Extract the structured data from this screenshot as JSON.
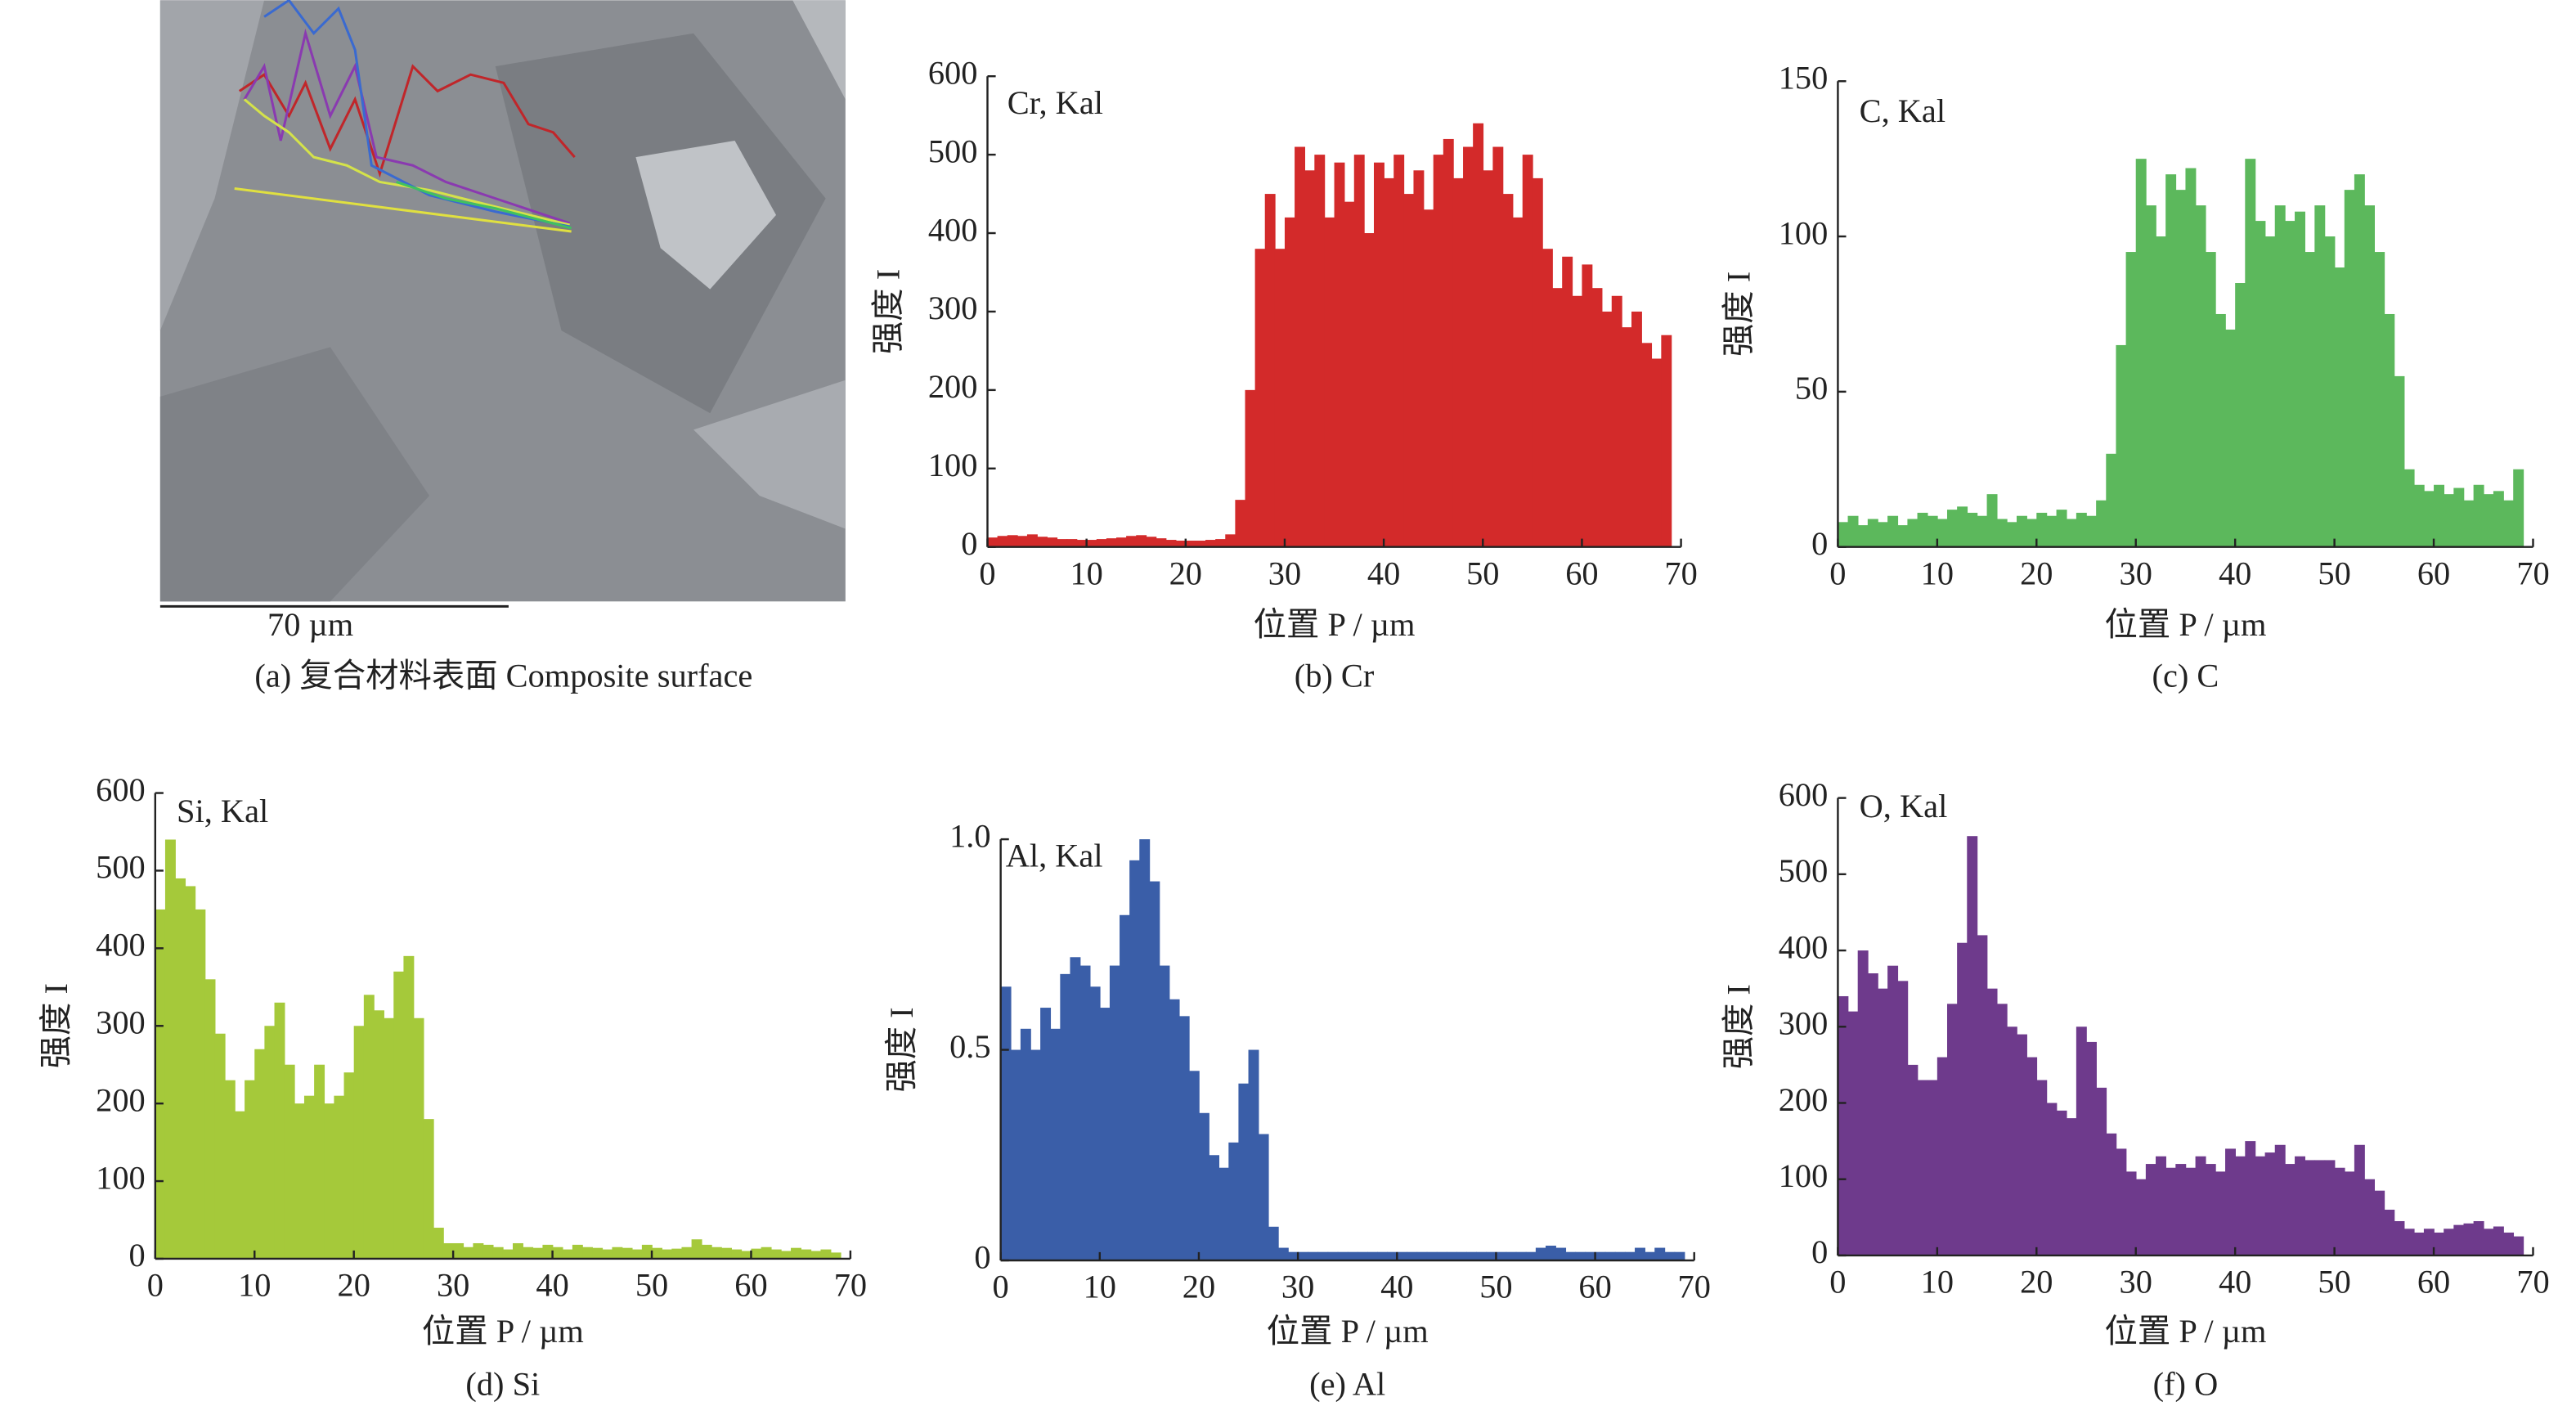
{
  "figure_a": {
    "scale_bar": "70 µm",
    "caption": "(a) 复合材料表面 Composite surface"
  },
  "chart_data": [
    {
      "type": "area",
      "title": "Cr, Kal",
      "caption": "(b) Cr",
      "x_label": "位置 P / µm",
      "y_label": "强度 I",
      "color": "#d32a2a",
      "xlim": [
        0,
        70
      ],
      "xticks": [
        0,
        10,
        20,
        30,
        40,
        50,
        60,
        70
      ],
      "ylim": [
        0,
        600
      ],
      "yticks": [
        0,
        100,
        200,
        300,
        400,
        500,
        600
      ],
      "x": [
        0,
        1,
        2,
        3,
        4,
        5,
        6,
        7,
        8,
        9,
        10,
        11,
        12,
        13,
        14,
        15,
        16,
        17,
        18,
        19,
        20,
        21,
        22,
        23,
        24,
        25,
        26,
        27,
        28,
        29,
        30,
        31,
        32,
        33,
        34,
        35,
        36,
        37,
        38,
        39,
        40,
        41,
        42,
        43,
        44,
        45,
        46,
        47,
        48,
        49,
        50,
        51,
        52,
        53,
        54,
        55,
        56,
        57,
        58,
        59,
        60,
        61,
        62,
        63,
        64,
        65,
        66,
        67,
        68
      ],
      "values": [
        12,
        14,
        15,
        14,
        16,
        13,
        12,
        10,
        10,
        9,
        9,
        10,
        11,
        12,
        14,
        15,
        13,
        11,
        9,
        8,
        8,
        8,
        9,
        10,
        16,
        60,
        200,
        380,
        450,
        380,
        420,
        510,
        480,
        500,
        420,
        490,
        440,
        500,
        400,
        490,
        470,
        500,
        450,
        480,
        430,
        500,
        520,
        470,
        510,
        540,
        480,
        510,
        450,
        420,
        500,
        470,
        380,
        330,
        370,
        320,
        360,
        330,
        300,
        320,
        280,
        300,
        260,
        240,
        270
      ]
    },
    {
      "type": "area",
      "title": "C, Kal",
      "caption": "(c) C",
      "x_label": "位置 P / µm",
      "y_label": "强度 I",
      "color": "#5cb85c",
      "xlim": [
        0,
        70
      ],
      "xticks": [
        0,
        10,
        20,
        30,
        40,
        50,
        60,
        70
      ],
      "ylim": [
        0,
        150
      ],
      "yticks": [
        0,
        50,
        100,
        150
      ],
      "x": [
        0,
        1,
        2,
        3,
        4,
        5,
        6,
        7,
        8,
        9,
        10,
        11,
        12,
        13,
        14,
        15,
        16,
        17,
        18,
        19,
        20,
        21,
        22,
        23,
        24,
        25,
        26,
        27,
        28,
        29,
        30,
        31,
        32,
        33,
        34,
        35,
        36,
        37,
        38,
        39,
        40,
        41,
        42,
        43,
        44,
        45,
        46,
        47,
        48,
        49,
        50,
        51,
        52,
        53,
        54,
        55,
        56,
        57,
        58,
        59,
        60,
        61,
        62,
        63,
        64,
        65,
        66,
        67,
        68
      ],
      "values": [
        8,
        10,
        7,
        9,
        8,
        10,
        7,
        9,
        11,
        10,
        9,
        12,
        13,
        11,
        10,
        17,
        9,
        8,
        10,
        9,
        11,
        10,
        12,
        9,
        11,
        10,
        15,
        30,
        65,
        95,
        125,
        110,
        100,
        120,
        115,
        122,
        110,
        95,
        75,
        70,
        85,
        125,
        105,
        100,
        110,
        105,
        108,
        95,
        110,
        100,
        90,
        115,
        120,
        110,
        95,
        75,
        55,
        25,
        20,
        18,
        20,
        17,
        19,
        15,
        20,
        17,
        18,
        15,
        25
      ]
    },
    {
      "type": "area",
      "title": "Si, Kal",
      "caption": "(d) Si",
      "x_label": "位置 P / µm",
      "y_label": "强度 I",
      "color": "#a5c93a",
      "xlim": [
        0,
        70
      ],
      "xticks": [
        0,
        10,
        20,
        30,
        40,
        50,
        60,
        70
      ],
      "ylim": [
        0,
        600
      ],
      "yticks": [
        0,
        100,
        200,
        300,
        400,
        500,
        600
      ],
      "x": [
        0,
        1,
        2,
        3,
        4,
        5,
        6,
        7,
        8,
        9,
        10,
        11,
        12,
        13,
        14,
        15,
        16,
        17,
        18,
        19,
        20,
        21,
        22,
        23,
        24,
        25,
        26,
        27,
        28,
        29,
        30,
        31,
        32,
        33,
        34,
        35,
        36,
        37,
        38,
        39,
        40,
        41,
        42,
        43,
        44,
        45,
        46,
        47,
        48,
        49,
        50,
        51,
        52,
        53,
        54,
        55,
        56,
        57,
        58,
        59,
        60,
        61,
        62,
        63,
        64,
        65,
        66,
        67,
        68
      ],
      "values": [
        450,
        540,
        490,
        480,
        450,
        360,
        290,
        230,
        190,
        230,
        270,
        300,
        330,
        250,
        200,
        210,
        250,
        200,
        210,
        240,
        300,
        340,
        320,
        310,
        370,
        390,
        310,
        180,
        40,
        20,
        20,
        15,
        20,
        18,
        15,
        12,
        20,
        15,
        14,
        18,
        15,
        12,
        18,
        15,
        14,
        12,
        15,
        14,
        12,
        18,
        14,
        12,
        13,
        15,
        25,
        18,
        15,
        14,
        12,
        10,
        13,
        15,
        12,
        10,
        14,
        12,
        10,
        12,
        8
      ]
    },
    {
      "type": "area",
      "title": "Al, Kal",
      "caption": "(e) Al",
      "x_label": "位置 P / µm",
      "y_label": "强度 I",
      "color": "#3a5ea8",
      "xlim": [
        0,
        70
      ],
      "xticks": [
        0,
        10,
        20,
        30,
        40,
        50,
        60,
        70
      ],
      "ylim": [
        0,
        1
      ],
      "yticks": [
        0,
        0.5,
        {
          "value": 1,
          "label": "1.0"
        }
      ],
      "x": [
        0,
        1,
        2,
        3,
        4,
        5,
        6,
        7,
        8,
        9,
        10,
        11,
        12,
        13,
        14,
        15,
        16,
        17,
        18,
        19,
        20,
        21,
        22,
        23,
        24,
        25,
        26,
        27,
        28,
        29,
        30,
        31,
        32,
        33,
        34,
        35,
        36,
        37,
        38,
        39,
        40,
        41,
        42,
        43,
        44,
        45,
        46,
        47,
        48,
        49,
        50,
        51,
        52,
        53,
        54,
        55,
        56,
        57,
        58,
        59,
        60,
        61,
        62,
        63,
        64,
        65,
        66,
        67,
        68
      ],
      "values": [
        0.65,
        0.5,
        0.55,
        0.5,
        0.6,
        0.55,
        0.68,
        0.72,
        0.7,
        0.65,
        0.6,
        0.7,
        0.82,
        0.95,
        1,
        0.9,
        0.7,
        0.62,
        0.58,
        0.45,
        0.35,
        0.25,
        0.22,
        0.28,
        0.42,
        0.5,
        0.3,
        0.08,
        0.03,
        0.02,
        0.02,
        0.02,
        0.02,
        0.02,
        0.02,
        0.02,
        0.02,
        0.02,
        0.02,
        0.02,
        0.02,
        0.02,
        0.02,
        0.02,
        0.02,
        0.02,
        0.02,
        0.02,
        0.02,
        0.02,
        0.02,
        0.02,
        0.02,
        0.02,
        0.03,
        0.035,
        0.03,
        0.02,
        0.02,
        0.02,
        0.02,
        0.02,
        0.02,
        0.02,
        0.03,
        0.02,
        0.03,
        0.02,
        0.02
      ]
    },
    {
      "type": "area",
      "title": "O, Kal",
      "caption": "(f) O",
      "x_label": "位置 P / µm",
      "y_label": "强度 I",
      "color": "#6e3a8c",
      "xlim": [
        0,
        70
      ],
      "xticks": [
        0,
        10,
        20,
        30,
        40,
        50,
        60,
        70
      ],
      "ylim": [
        0,
        600
      ],
      "yticks": [
        0,
        100,
        200,
        300,
        400,
        500,
        600
      ],
      "x": [
        0,
        1,
        2,
        3,
        4,
        5,
        6,
        7,
        8,
        9,
        10,
        11,
        12,
        13,
        14,
        15,
        16,
        17,
        18,
        19,
        20,
        21,
        22,
        23,
        24,
        25,
        26,
        27,
        28,
        29,
        30,
        31,
        32,
        33,
        34,
        35,
        36,
        37,
        38,
        39,
        40,
        41,
        42,
        43,
        44,
        45,
        46,
        47,
        48,
        49,
        50,
        51,
        52,
        53,
        54,
        55,
        56,
        57,
        58,
        59,
        60,
        61,
        62,
        63,
        64,
        65,
        66,
        67,
        68
      ],
      "values": [
        340,
        320,
        400,
        370,
        350,
        380,
        360,
        250,
        230,
        230,
        260,
        330,
        410,
        550,
        420,
        350,
        330,
        300,
        290,
        260,
        230,
        200,
        190,
        180,
        300,
        280,
        220,
        160,
        140,
        110,
        100,
        120,
        130,
        115,
        120,
        115,
        130,
        120,
        110,
        140,
        130,
        150,
        130,
        135,
        145,
        120,
        130,
        125,
        125,
        125,
        115,
        110,
        145,
        100,
        85,
        60,
        45,
        35,
        30,
        35,
        30,
        35,
        40,
        42,
        45,
        35,
        38,
        30,
        25
      ]
    }
  ]
}
